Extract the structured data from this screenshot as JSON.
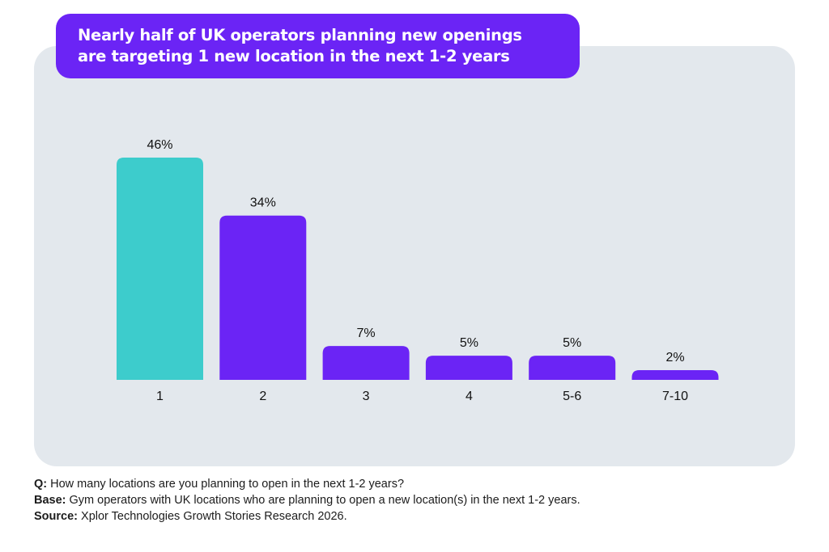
{
  "title": {
    "line1": "Nearly half of UK operators planning new openings",
    "line2": "are targeting 1 new location in the next 1-2 years"
  },
  "colors": {
    "highlight": "#3dcccc",
    "bar": "#6b24f5",
    "panel": "#e3e8ed"
  },
  "chart_data": {
    "type": "bar",
    "categories": [
      "1",
      "2",
      "3",
      "4",
      "5-6",
      "7-10"
    ],
    "values": [
      46,
      34,
      7,
      5,
      5,
      2
    ],
    "value_labels": [
      "46%",
      "34%",
      "7%",
      "5%",
      "5%",
      "2%"
    ],
    "highlight_index": 0,
    "ylim": [
      0,
      46
    ],
    "grid": false,
    "xlabel": "",
    "ylabel": ""
  },
  "footer": {
    "q_label": "Q:",
    "q_text": " How many locations are you planning to open in the next 1-2 years?",
    "base_label": "Base:",
    "base_text": " Gym operators with UK locations who are planning to open a new location(s) in the next 1-2 years.",
    "source_label": "Source:",
    "source_text": " Xplor Technologies Growth Stories Research 2026."
  }
}
